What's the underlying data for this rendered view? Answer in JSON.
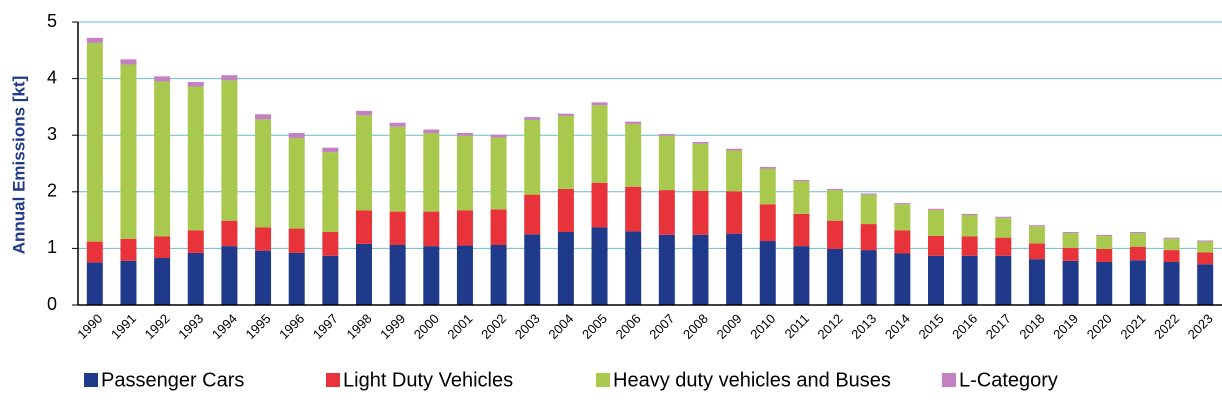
{
  "chart_data": {
    "type": "stacked_bar",
    "y_label": "Annual Emissions [kt]",
    "categories": [
      "1990",
      "1991",
      "1992",
      "1993",
      "1994",
      "1995",
      "1996",
      "1997",
      "1998",
      "1999",
      "2000",
      "2001",
      "2002",
      "2003",
      "2004",
      "2005",
      "2006",
      "2007",
      "2008",
      "2009",
      "2010",
      "2011",
      "2012",
      "2013",
      "2014",
      "2015",
      "2016",
      "2017",
      "2018",
      "2019",
      "2020",
      "2021",
      "2022",
      "2023"
    ],
    "series": [
      {
        "name": "Passenger Cars",
        "color": "#1f3a8a",
        "values": [
          0.75,
          0.78,
          0.83,
          0.92,
          1.04,
          0.96,
          0.92,
          0.87,
          1.08,
          1.06,
          1.04,
          1.05,
          1.06,
          1.25,
          1.29,
          1.37,
          1.3,
          1.24,
          1.24,
          1.26,
          1.13,
          1.04,
          0.99,
          0.97,
          0.91,
          0.87,
          0.87,
          0.87,
          0.81,
          0.78,
          0.76,
          0.79,
          0.76,
          0.72
        ]
      },
      {
        "name": "Light Duty Vehicles",
        "color": "#e8333b",
        "values": [
          0.37,
          0.39,
          0.38,
          0.4,
          0.45,
          0.41,
          0.43,
          0.42,
          0.59,
          0.59,
          0.61,
          0.62,
          0.63,
          0.7,
          0.76,
          0.79,
          0.79,
          0.79,
          0.78,
          0.75,
          0.65,
          0.57,
          0.5,
          0.46,
          0.41,
          0.35,
          0.34,
          0.32,
          0.28,
          0.23,
          0.23,
          0.24,
          0.21,
          0.21
        ]
      },
      {
        "name": "Heavy duty vehicles and Buses",
        "color": "#a8c94e",
        "values": [
          3.51,
          3.08,
          2.74,
          2.54,
          2.48,
          1.91,
          1.6,
          1.41,
          1.68,
          1.5,
          1.39,
          1.32,
          1.27,
          1.32,
          1.29,
          1.37,
          1.11,
          0.96,
          0.83,
          0.72,
          0.63,
          0.58,
          0.54,
          0.52,
          0.46,
          0.46,
          0.38,
          0.35,
          0.3,
          0.26,
          0.23,
          0.24,
          0.2,
          0.19
        ]
      },
      {
        "name": "L-Category",
        "color": "#c381c3",
        "values": [
          0.09,
          0.09,
          0.09,
          0.08,
          0.09,
          0.09,
          0.09,
          0.08,
          0.08,
          0.07,
          0.06,
          0.05,
          0.05,
          0.05,
          0.04,
          0.05,
          0.04,
          0.03,
          0.03,
          0.03,
          0.03,
          0.02,
          0.02,
          0.02,
          0.02,
          0.02,
          0.02,
          0.02,
          0.02,
          0.02,
          0.02,
          0.02,
          0.02,
          0.02
        ]
      }
    ],
    "ylim": [
      0,
      5
    ],
    "yticks": [
      0,
      1,
      2,
      3,
      4,
      5
    ],
    "grid": true,
    "grid_color": "#6bbccc",
    "legend": "bottom"
  }
}
